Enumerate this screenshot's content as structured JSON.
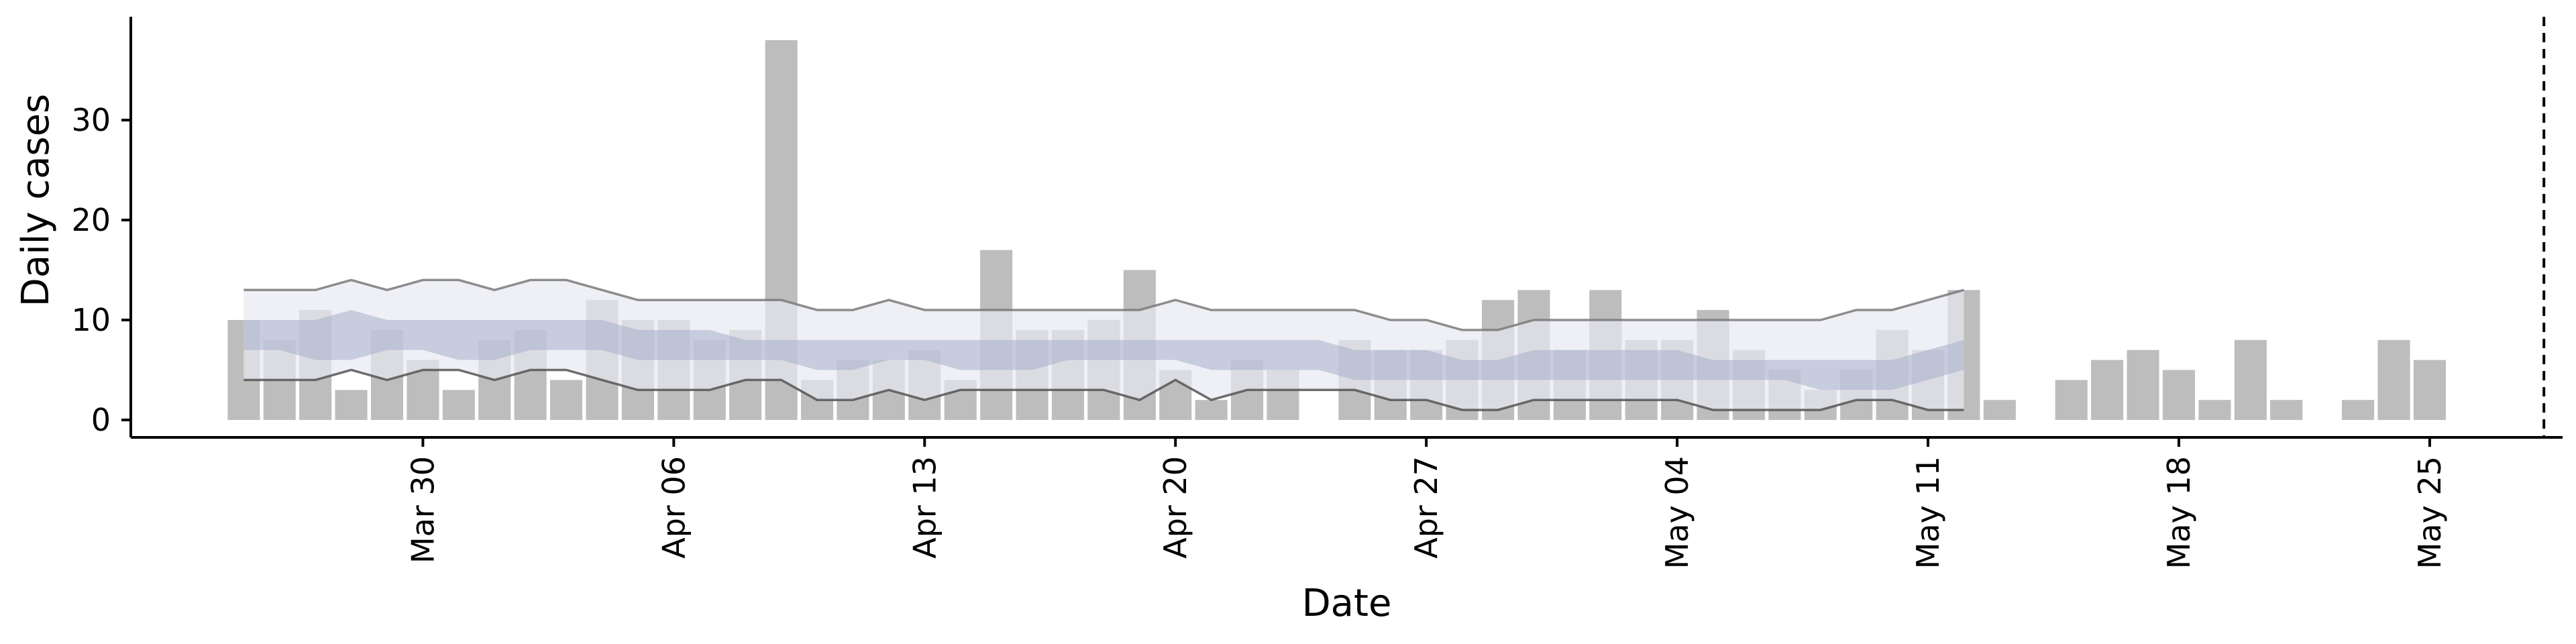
{
  "chart_data": {
    "type": "bar",
    "xlabel": "Date",
    "ylabel": "Daily cases",
    "ylim": [
      -2,
      40
    ],
    "yticks": [
      0,
      10,
      20,
      30
    ],
    "x_start": "2020-03-25",
    "x_ticks": [
      {
        "date": "2020-03-30",
        "label": "Mar 30"
      },
      {
        "date": "2020-04-06",
        "label": "Apr 06"
      },
      {
        "date": "2020-04-13",
        "label": "Apr 13"
      },
      {
        "date": "2020-04-20",
        "label": "Apr 20"
      },
      {
        "date": "2020-04-27",
        "label": "Apr 27"
      },
      {
        "date": "2020-05-04",
        "label": "May 04"
      },
      {
        "date": "2020-05-11",
        "label": "May 11"
      },
      {
        "date": "2020-05-18",
        "label": "May 18"
      },
      {
        "date": "2020-05-25",
        "label": "May 25"
      }
    ],
    "cases": [
      10,
      8,
      11,
      3,
      9,
      6,
      3,
      8,
      9,
      4,
      12,
      10,
      10,
      8,
      9,
      38,
      4,
      6,
      6,
      7,
      4,
      17,
      9,
      9,
      10,
      15,
      5,
      2,
      6,
      5,
      null,
      8,
      7,
      7,
      8,
      12,
      13,
      7,
      13,
      8,
      8,
      11,
      7,
      5,
      3,
      5,
      9,
      7,
      13,
      2,
      null,
      4,
      6,
      7,
      5,
      2,
      8,
      2,
      null,
      2,
      8,
      6
    ],
    "projection_line_date": "2020-05-28",
    "band_outer": {
      "upper": [
        13,
        13,
        13,
        14,
        13,
        14,
        14,
        13,
        14,
        14,
        13,
        12,
        12,
        12,
        12,
        12,
        11,
        11,
        12,
        11,
        11,
        11,
        11,
        11,
        11,
        11,
        12,
        11,
        11,
        11,
        11,
        11,
        10,
        10,
        9,
        9,
        10,
        10,
        10,
        10,
        10,
        10,
        10,
        10,
        10,
        11,
        11,
        12,
        13
      ],
      "lower": [
        4,
        4,
        4,
        5,
        4,
        5,
        5,
        4,
        5,
        5,
        4,
        3,
        3,
        3,
        4,
        4,
        2,
        2,
        3,
        2,
        3,
        3,
        3,
        3,
        3,
        2,
        4,
        2,
        3,
        3,
        3,
        3,
        2,
        2,
        1,
        1,
        2,
        2,
        2,
        2,
        2,
        1,
        1,
        1,
        1,
        2,
        2,
        1,
        1
      ]
    },
    "band_inner": {
      "upper": [
        10,
        10,
        10,
        11,
        10,
        10,
        10,
        10,
        10,
        10,
        10,
        9,
        9,
        9,
        8,
        8,
        8,
        8,
        8,
        8,
        8,
        8,
        8,
        8,
        8,
        8,
        8,
        8,
        8,
        8,
        8,
        7,
        7,
        7,
        6,
        6,
        7,
        7,
        7,
        7,
        7,
        6,
        6,
        6,
        6,
        6,
        6,
        7,
        8
      ],
      "lower": [
        7,
        7,
        6,
        6,
        7,
        7,
        6,
        6,
        7,
        7,
        7,
        6,
        6,
        6,
        6,
        6,
        5,
        5,
        6,
        6,
        5,
        5,
        5,
        6,
        6,
        6,
        6,
        5,
        5,
        5,
        5,
        4,
        4,
        4,
        4,
        4,
        4,
        4,
        4,
        4,
        4,
        4,
        4,
        4,
        3,
        3,
        3,
        4,
        5
      ]
    },
    "colors": {
      "bar": "#bdbdbd",
      "outer_band": "#e8eaf2",
      "inner_band": "#a6aecb",
      "band_line_upper": "#7a7a7a",
      "band_line_lower": "#555555",
      "axis": "#000000"
    }
  }
}
